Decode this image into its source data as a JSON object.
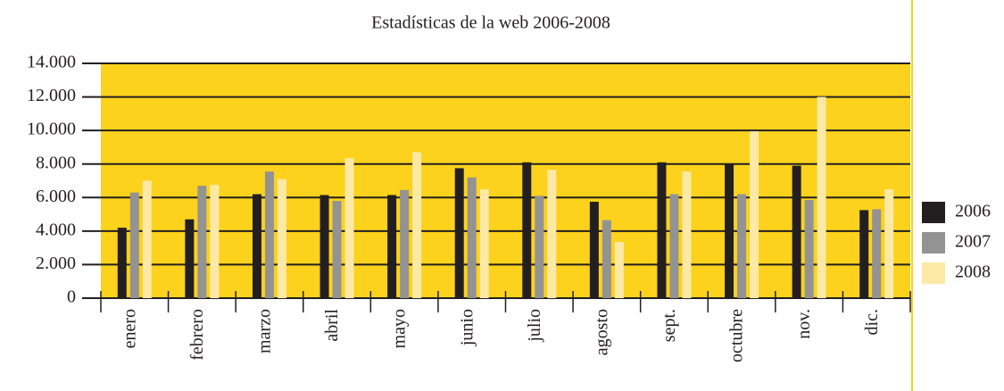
{
  "chart_data": {
    "type": "bar",
    "title": "Estadísticas de la web 2006-2008",
    "categories": [
      "enero",
      "febrero",
      "marzo",
      "abril",
      "mayo",
      "junio",
      "julio",
      "agosto",
      "sept.",
      "octubre",
      "nov.",
      "dic."
    ],
    "series": [
      {
        "name": "2006",
        "color": "#231f20",
        "values": [
          4200,
          4700,
          6200,
          6150,
          6150,
          7750,
          8100,
          5750,
          8100,
          8000,
          7900,
          5250
        ]
      },
      {
        "name": "2007",
        "color": "#939393",
        "values": [
          6300,
          6700,
          7550,
          5800,
          6450,
          7200,
          6100,
          4650,
          6200,
          6200,
          5850,
          5300
        ]
      },
      {
        "name": "2008",
        "color": "#fde9a6",
        "values": [
          7000,
          6750,
          7100,
          8350,
          8700,
          6500,
          7650,
          3350,
          7550,
          9950,
          12000,
          6500
        ]
      }
    ],
    "ylim": [
      0,
      14000
    ],
    "yticks": [
      0,
      {
        "value": 2000,
        "label": "2.000"
      },
      {
        "value": 4000,
        "label": "4.000"
      },
      {
        "value": 6000,
        "label": "6.000"
      },
      {
        "value": 8000,
        "label": "8.000"
      },
      {
        "value": 10000,
        "label": "10.000"
      },
      {
        "value": 12000,
        "label": "12.000"
      },
      {
        "value": 14000,
        "label": "14.000"
      }
    ],
    "grid": true,
    "plot_background": "#fcd21c",
    "legend": "right"
  }
}
